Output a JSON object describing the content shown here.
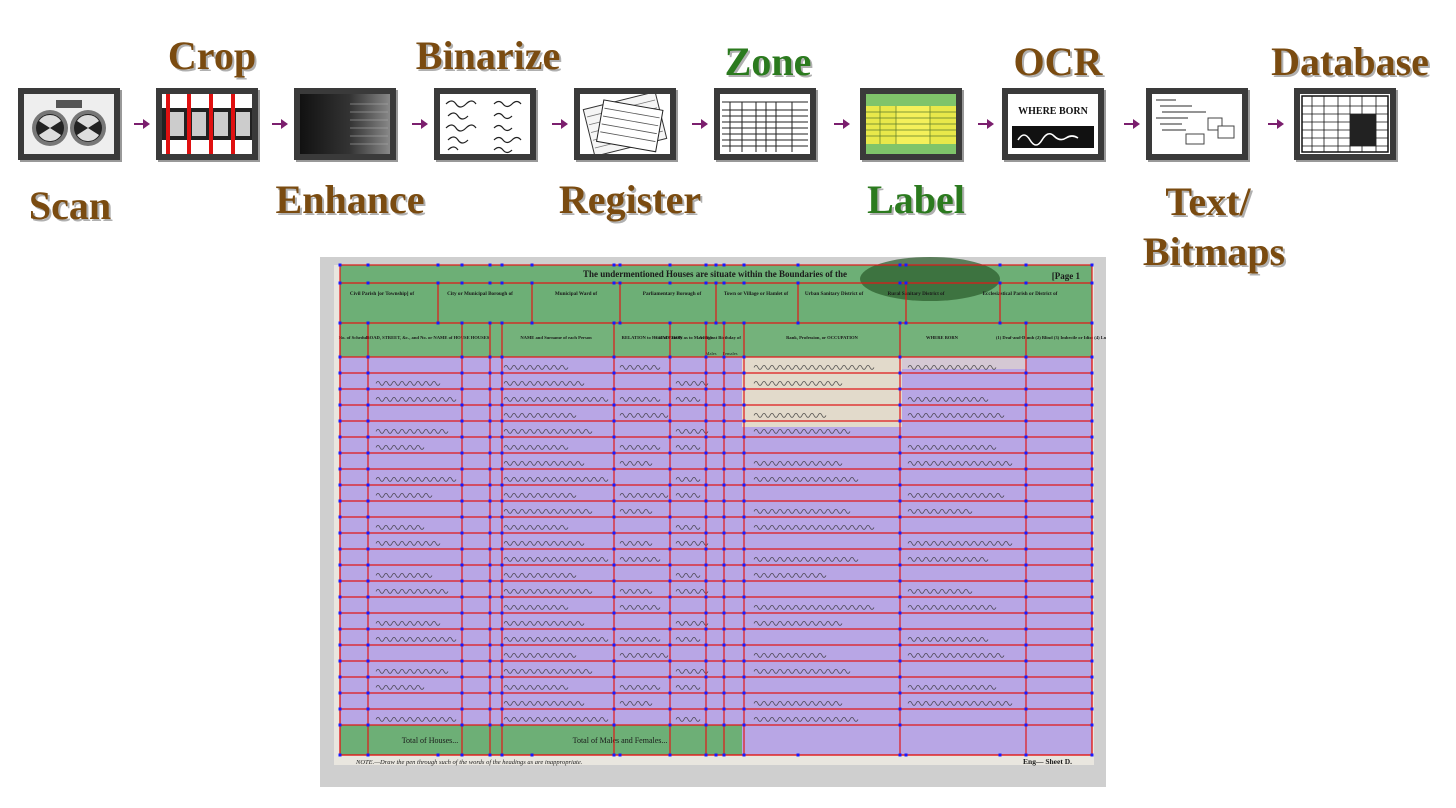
{
  "pipeline": {
    "stages": [
      {
        "id": "scan",
        "label": "Scan",
        "color": "#7a4b10"
      },
      {
        "id": "crop",
        "label": "Crop",
        "color": "#7a4b10"
      },
      {
        "id": "enhance",
        "label": "Enhance",
        "color": "#7a4b10"
      },
      {
        "id": "binarize",
        "label": "Binarize",
        "color": "#7a4b10"
      },
      {
        "id": "register",
        "label": "Register",
        "color": "#7a4b10"
      },
      {
        "id": "zone",
        "label": "Zone",
        "color": "#2b7a1e"
      },
      {
        "id": "label",
        "label": "Label",
        "color": "#2b7a1e"
      },
      {
        "id": "ocr",
        "label": "OCR",
        "color": "#7a4b10"
      },
      {
        "id": "text-bitmaps",
        "label_line1": "Text/",
        "label_line2": "Bitmaps",
        "color": "#7a4b10"
      },
      {
        "id": "database",
        "label": "Database",
        "color": "#7a4b10"
      }
    ],
    "arrow_color": "#7b1f6e",
    "ocr_thumb_text": "WHERE BORN"
  },
  "census_form": {
    "banner": "The undermentioned Houses are situate within the Boundaries of the",
    "page": "[Page 1",
    "header_fields": [
      "Civil Parish [or Township] of",
      "City or Municipal Borough of",
      "Municipal Ward of",
      "Parliamentary Borough of",
      "Town or Village or Hamlet of",
      "Urban Sanitary District of",
      "Rural Sanitary District of",
      "Ecclesiastical Parish or District of"
    ],
    "columns": [
      "No. of Schedule",
      "ROAD, STREET, &c., and No. or NAME of HOUSE",
      "HOUSES",
      "NAME and Surname of each Person",
      "RELATION to Head of Family",
      "CONDITION as to Marriage",
      "AGE last Birthday of",
      "Rank, Profession, or OCCUPATION",
      "WHERE BORN",
      "(1) Deaf-and-Dumb (2) Blind (3) Imbecile or Idiot (4) Lunatic"
    ],
    "age_sub": [
      "Males",
      "Females"
    ],
    "totals_houses": "Total of Houses...",
    "totals_persons": "Total of Males and Females...",
    "note": "NOTE.—Draw the pen through such of the words of the headings as are inappropriate.",
    "footer_right": "Eng— Sheet D.",
    "colors": {
      "header_zone": "#5fa86a",
      "body_zone": "#b39ee6",
      "grid": "#e01818",
      "nodes": "#1a1aff"
    }
  }
}
